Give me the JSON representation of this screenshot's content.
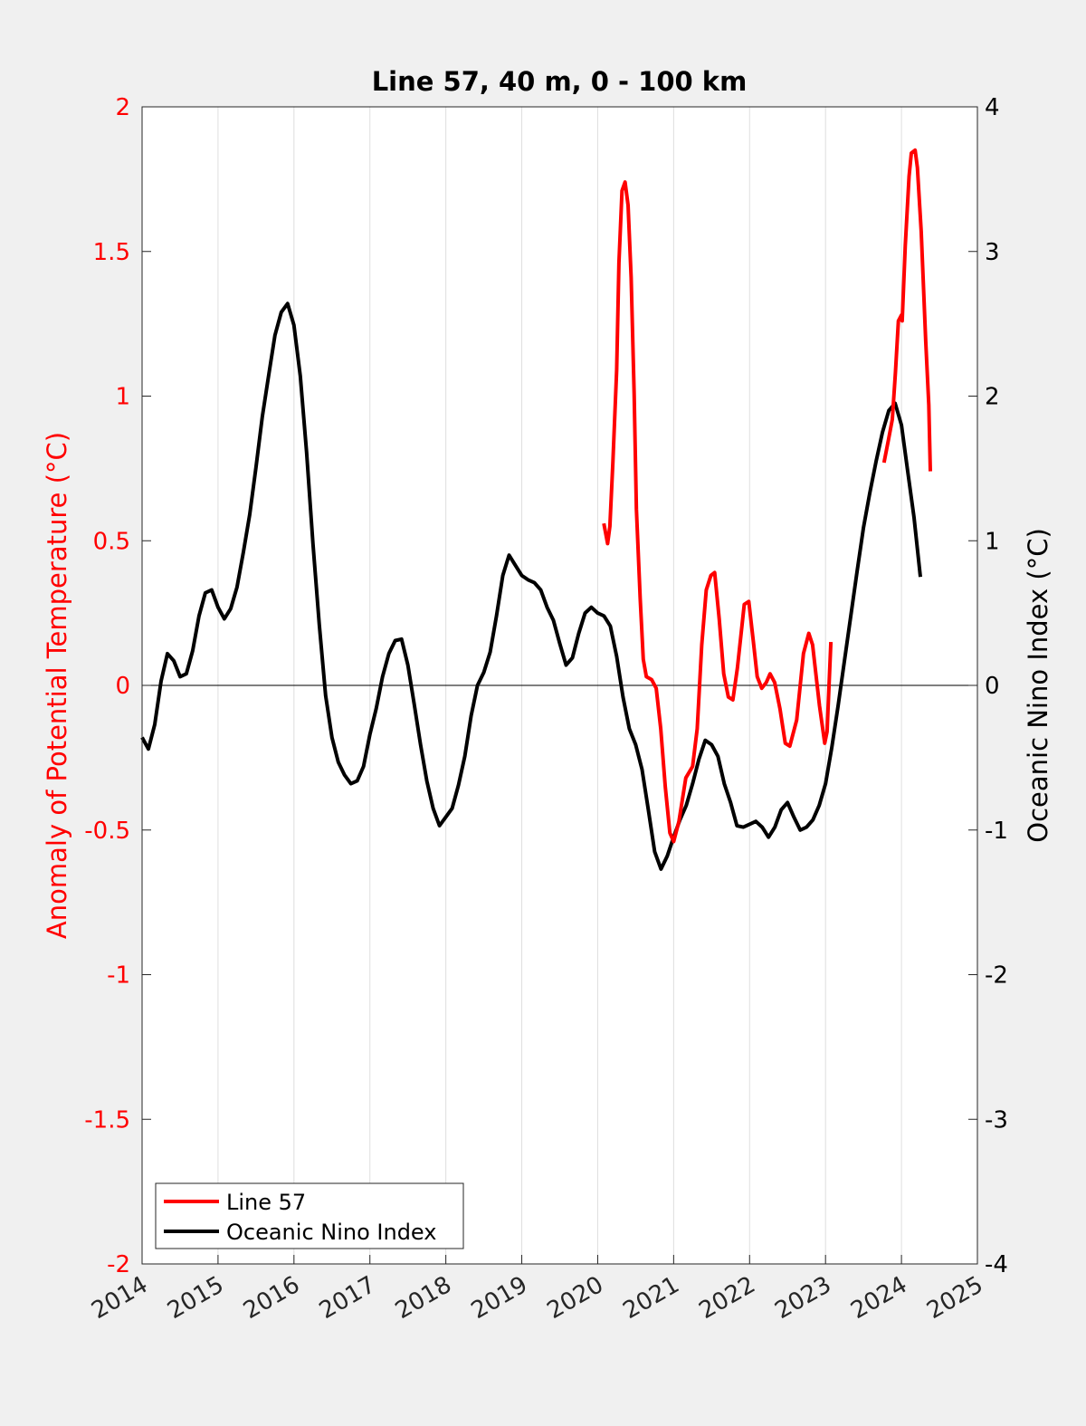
{
  "chart_data": {
    "type": "line",
    "title": "Line 57, 40 m, 0 - 100 km",
    "xlabel": "",
    "ylabel_left": "Anomaly of Potential Temperature (°C)",
    "ylabel_right": "Oceanic Nino Index (°C)",
    "xlim": [
      2014,
      2025
    ],
    "ylim_left": [
      -2,
      2
    ],
    "ylim_right": [
      -4,
      4
    ],
    "x_ticks": [
      "2014",
      "2015",
      "2016",
      "2017",
      "2018",
      "2019",
      "2020",
      "2021",
      "2022",
      "2023",
      "2024",
      "2025"
    ],
    "y_left_ticks": [
      "-2",
      "-1.5",
      "-1",
      "-0.5",
      "0",
      "0.5",
      "1",
      "1.5",
      "2"
    ],
    "y_right_ticks": [
      "-4",
      "-3",
      "-2",
      "-1",
      "0",
      "1",
      "2",
      "3",
      "4"
    ],
    "grid": "vertical",
    "legend_position": "bottom-left",
    "colors": {
      "line57": "#ff0000",
      "oni": "#000000",
      "left_axis": "#ff0000",
      "right_axis": "#000000"
    },
    "series": [
      {
        "name": "Line 57",
        "axis": "left",
        "x": [
          2020.08,
          2020.13,
          2020.16,
          2020.2,
          2020.25,
          2020.28,
          2020.32,
          2020.36,
          2020.4,
          2020.44,
          2020.48,
          2020.51,
          2020.56,
          2020.6,
          2020.64,
          2020.71,
          2020.77,
          2020.83,
          2020.89,
          2020.95,
          2021.0,
          2021.07,
          2021.16,
          2021.25,
          2021.31,
          2021.37,
          2021.43,
          2021.49,
          2021.54,
          2021.6,
          2021.66,
          2021.72,
          2021.78,
          2021.84,
          2021.93,
          2021.99,
          2022.05,
          2022.1,
          2022.16,
          2022.22,
          2022.27,
          2022.33,
          2022.4,
          2022.47,
          2022.53,
          2022.62,
          2022.71,
          2022.78,
          2022.83,
          2022.92,
          2022.99,
          2023.02,
          2023.07,
          null,
          2023.77,
          2023.83,
          2023.88,
          2023.92,
          2023.96,
          2024.0,
          2024.01,
          2024.05,
          2024.1,
          2024.13,
          2024.18,
          2024.21,
          2024.26,
          2024.32,
          2024.36,
          2024.38
        ],
        "y": [
          0.56,
          0.49,
          0.55,
          0.77,
          1.09,
          1.46,
          1.71,
          1.74,
          1.66,
          1.41,
          1.01,
          0.61,
          0.3,
          0.09,
          0.03,
          0.02,
          -0.01,
          -0.15,
          -0.35,
          -0.51,
          -0.54,
          -0.47,
          -0.32,
          -0.28,
          -0.15,
          0.14,
          0.33,
          0.38,
          0.39,
          0.23,
          0.04,
          -0.04,
          -0.05,
          0.06,
          0.28,
          0.29,
          0.15,
          0.03,
          -0.01,
          0.01,
          0.04,
          0.01,
          -0.08,
          -0.2,
          -0.21,
          -0.12,
          0.11,
          0.18,
          0.14,
          -0.07,
          -0.2,
          -0.16,
          0.15,
          null,
          0.77,
          0.85,
          0.92,
          1.08,
          1.26,
          1.28,
          1.26,
          1.52,
          1.76,
          1.84,
          1.85,
          1.79,
          1.57,
          1.19,
          0.97,
          0.74
        ]
      },
      {
        "name": "Oceanic Nino Index",
        "axis": "right",
        "x_start": 2014.0,
        "x_step_years": 0.08333,
        "y": [
          -0.36,
          -0.44,
          -0.27,
          0.03,
          0.22,
          0.17,
          0.06,
          0.08,
          0.24,
          0.48,
          0.64,
          0.66,
          0.54,
          0.46,
          0.53,
          0.68,
          0.92,
          1.18,
          1.51,
          1.86,
          2.14,
          2.42,
          2.58,
          2.64,
          2.49,
          2.14,
          1.61,
          0.98,
          0.42,
          -0.07,
          -0.36,
          -0.53,
          -0.62,
          -0.68,
          -0.66,
          -0.56,
          -0.34,
          -0.16,
          0.06,
          0.22,
          0.31,
          0.32,
          0.14,
          -0.13,
          -0.41,
          -0.66,
          -0.85,
          -0.97,
          -0.91,
          -0.85,
          -0.69,
          -0.49,
          -0.21,
          0.0,
          0.09,
          0.23,
          0.48,
          0.76,
          0.9,
          0.83,
          0.76,
          0.73,
          0.71,
          0.66,
          0.54,
          0.45,
          0.29,
          0.14,
          0.19,
          0.36,
          0.5,
          0.54,
          0.5,
          0.48,
          0.41,
          0.2,
          -0.08,
          -0.3,
          -0.41,
          -0.58,
          -0.86,
          -1.15,
          -1.27,
          -1.18,
          -1.05,
          -0.93,
          -0.83,
          -0.68,
          -0.51,
          -0.38,
          -0.41,
          -0.49,
          -0.68,
          -0.81,
          -0.97,
          -0.98,
          -0.96,
          -0.94,
          -0.98,
          -1.05,
          -0.98,
          -0.86,
          -0.81,
          -0.91,
          -1.0,
          -0.98,
          -0.93,
          -0.83,
          -0.68,
          -0.43,
          -0.14,
          0.17,
          0.48,
          0.79,
          1.09,
          1.33,
          1.55,
          1.75,
          1.9,
          1.95,
          1.8,
          1.48,
          1.16,
          0.75
        ]
      }
    ]
  }
}
